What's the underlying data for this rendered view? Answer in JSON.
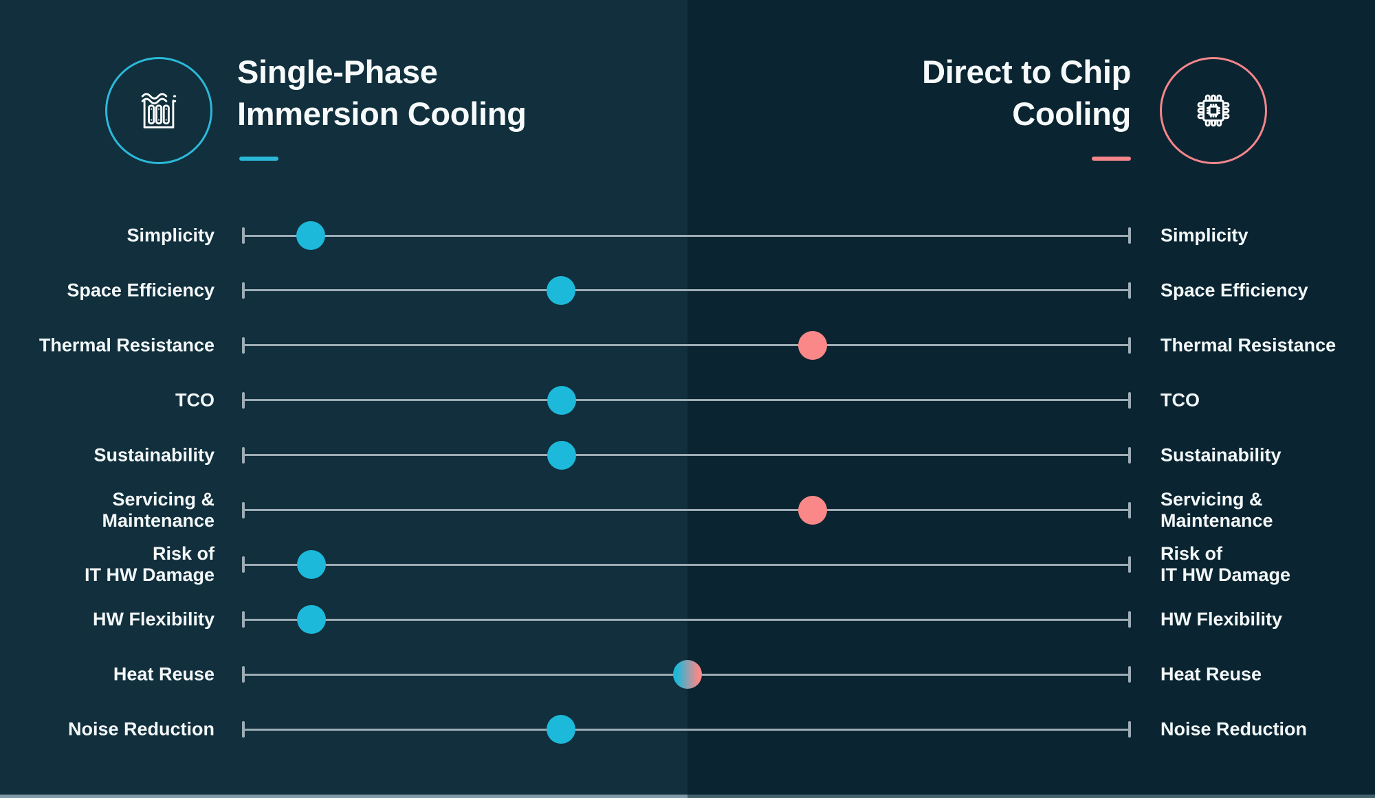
{
  "palette": {
    "bg_left": "#112F3C",
    "bg_right": "#0A2531",
    "cyan": "#2BB9D9",
    "cyan_dot": "#1DB9DA",
    "coral": "#F5868B",
    "coral_dot": "#FA8888",
    "track": "#9DACB5",
    "text": "#F3F7F8",
    "footer_left": "#7F99A9",
    "footer_right": "#45616E"
  },
  "header": {
    "left": {
      "title_lines": [
        "Single-Phase",
        "Immersion Cooling"
      ],
      "icon": "immersion-tank-icon",
      "accent": "#2BB9D9"
    },
    "right": {
      "title_lines": [
        "Direct to Chip",
        "Cooling"
      ],
      "icon": "cpu-chip-icon",
      "accent": "#F5868B"
    }
  },
  "chart_data": {
    "type": "scatter",
    "subtype": "comparison-slider",
    "title": "Single-Phase Immersion Cooling vs Direct to Chip Cooling",
    "left_pole": "Single-Phase Immersion Cooling",
    "right_pole": "Direct to Chip Cooling",
    "axis": {
      "min_pct": 0,
      "max_pct": 100,
      "description": "Dot position along track: 0% = far left (Single-Phase Immersion side), 100% = far right (Direct to Chip side)"
    },
    "legend": {
      "cyan": "favors Single-Phase Immersion Cooling",
      "coral": "favors Direct to Chip Cooling",
      "gradient": "neutral / shared"
    },
    "rows": [
      {
        "label": "Simplicity",
        "lines": [
          "Simplicity"
        ],
        "value_pct": 7.7,
        "marker": "cyan"
      },
      {
        "label": "Space Efficiency",
        "lines": [
          "Space Efficiency"
        ],
        "value_pct": 35.9,
        "marker": "cyan"
      },
      {
        "label": "Thermal Resistance",
        "lines": [
          "Thermal Resistance"
        ],
        "value_pct": 64.2,
        "marker": "coral"
      },
      {
        "label": "TCO",
        "lines": [
          "TCO"
        ],
        "value_pct": 36.0,
        "marker": "cyan"
      },
      {
        "label": "Sustainability",
        "lines": [
          "Sustainability"
        ],
        "value_pct": 36.0,
        "marker": "cyan"
      },
      {
        "label": "Servicing & Maintenance",
        "lines": [
          "Servicing &",
          "Maintenance"
        ],
        "value_pct": 64.2,
        "marker": "coral"
      },
      {
        "label": "Risk of IT HW Damage",
        "lines": [
          "Risk of",
          "IT HW Damage"
        ],
        "value_pct": 7.8,
        "marker": "cyan"
      },
      {
        "label": "HW Flexibility",
        "lines": [
          "HW Flexibility"
        ],
        "value_pct": 7.8,
        "marker": "cyan"
      },
      {
        "label": "Heat Reuse",
        "lines": [
          "Heat Reuse"
        ],
        "value_pct": 50.1,
        "marker": "gradient"
      },
      {
        "label": "Noise Reduction",
        "lines": [
          "Noise Reduction"
        ],
        "value_pct": 35.9,
        "marker": "cyan"
      }
    ]
  }
}
